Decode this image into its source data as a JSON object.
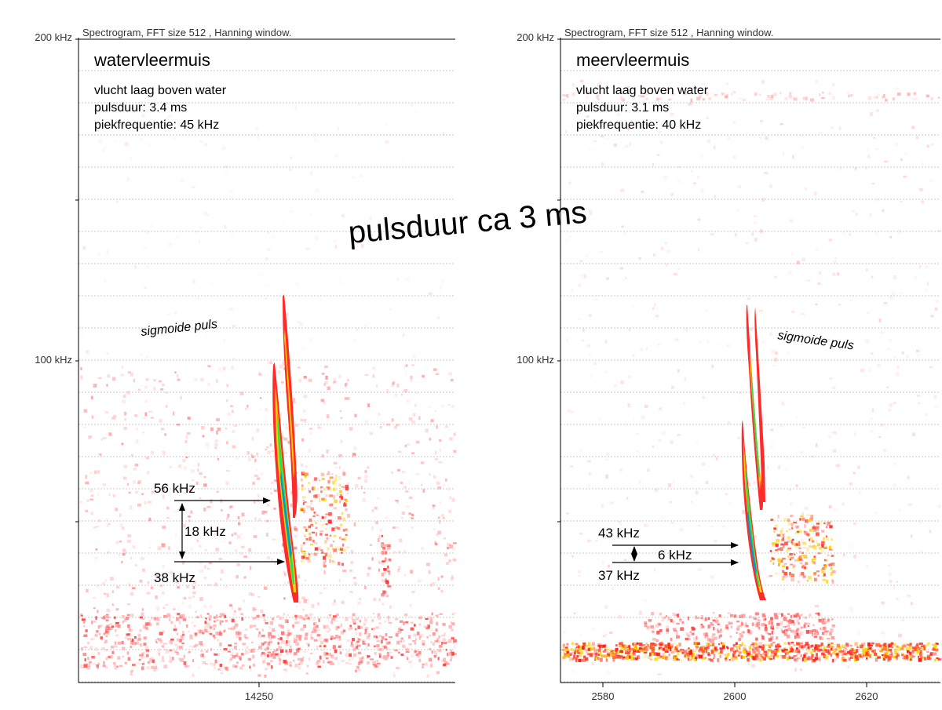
{
  "overlay_title": "pulsduur ca 3 ms",
  "chart_data": [
    {
      "type": "heatmap",
      "panel_id": "left",
      "header": "Spectrogram, FFT size 512 , Hanning window.",
      "y_tick_labels": [
        "200 kHz",
        "100 kHz"
      ],
      "ylim": [
        0,
        200
      ],
      "grid": true,
      "x_tick_labels": [
        "14250"
      ],
      "species": "watervleermuis",
      "info_lines": [
        "vlucht laag boven water",
        "pulsduur: 3.4 ms",
        "piekfrequentie: 45 kHz"
      ],
      "pulse_note": "sigmoide puls",
      "annotations": {
        "upper_freq": "56 kHz",
        "bandwidth": "18 kHz",
        "lower_freq": "38 kHz"
      },
      "values": {
        "upper_freq_khz": 56,
        "lower_freq_khz": 38,
        "bandwidth_khz": 18,
        "pulse_duration_ms": 3.4,
        "peak_frequency_khz": 45
      },
      "colors": [
        "#ff3030",
        "#ffd400",
        "#30e040",
        "#00b0d0"
      ]
    },
    {
      "type": "heatmap",
      "panel_id": "right",
      "header": "Spectrogram, FFT size 512 , Hanning window.",
      "y_tick_labels": [
        "200 kHz",
        "100 kHz"
      ],
      "ylim": [
        0,
        200
      ],
      "grid": true,
      "x_tick_labels": [
        "2580",
        "2600",
        "2620"
      ],
      "x_ticks": [
        2580,
        2600,
        2620
      ],
      "species": "meervleermuis",
      "info_lines": [
        "vlucht laag boven water",
        "pulsduur: 3.1 ms",
        "piekfrequentie: 40 kHz"
      ],
      "pulse_note": "sigmoide puls",
      "annotations": {
        "upper_freq": "43 kHz",
        "bandwidth": "6 kHz",
        "lower_freq": "37 kHz"
      },
      "values": {
        "upper_freq_khz": 43,
        "lower_freq_khz": 37,
        "bandwidth_khz": 6,
        "pulse_duration_ms": 3.1,
        "peak_frequency_khz": 40
      },
      "colors": [
        "#ff3030",
        "#ffd400",
        "#30e040",
        "#00b0d0"
      ]
    }
  ]
}
